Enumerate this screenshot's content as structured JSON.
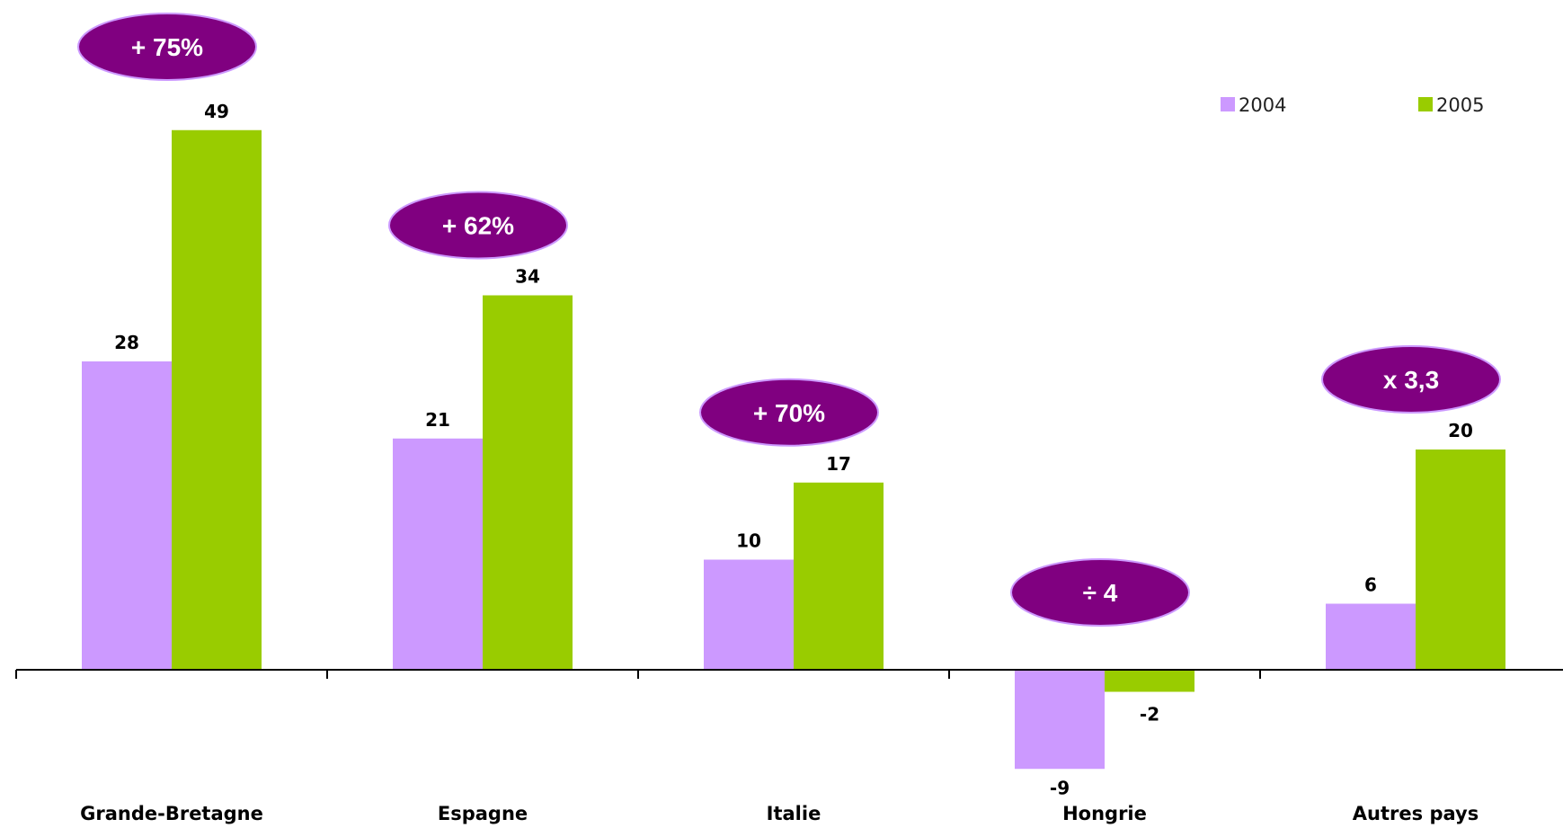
{
  "chart_data": {
    "type": "bar",
    "title": "",
    "xlabel": "",
    "ylabel": "",
    "categories": [
      "Grande-Bretagne",
      "Espagne",
      "Italie",
      "Hongrie",
      "Autres pays"
    ],
    "series": [
      {
        "name": "2004",
        "values": [
          28,
          21,
          10,
          -9,
          6
        ]
      },
      {
        "name": "2005",
        "values": [
          49,
          34,
          17,
          -2,
          20
        ]
      }
    ],
    "growth_labels": [
      "+ 75%",
      "+ 62%",
      "+ 70%",
      "÷ 4",
      "x 3,3"
    ],
    "ylim": [
      -12,
      52
    ],
    "grid": false,
    "legend_position": "top-right",
    "colors": {
      "2004": "#cc99ff",
      "2005": "#99cc00",
      "badge_fill": "#800080",
      "badge_stroke": "#cc99ff"
    }
  }
}
